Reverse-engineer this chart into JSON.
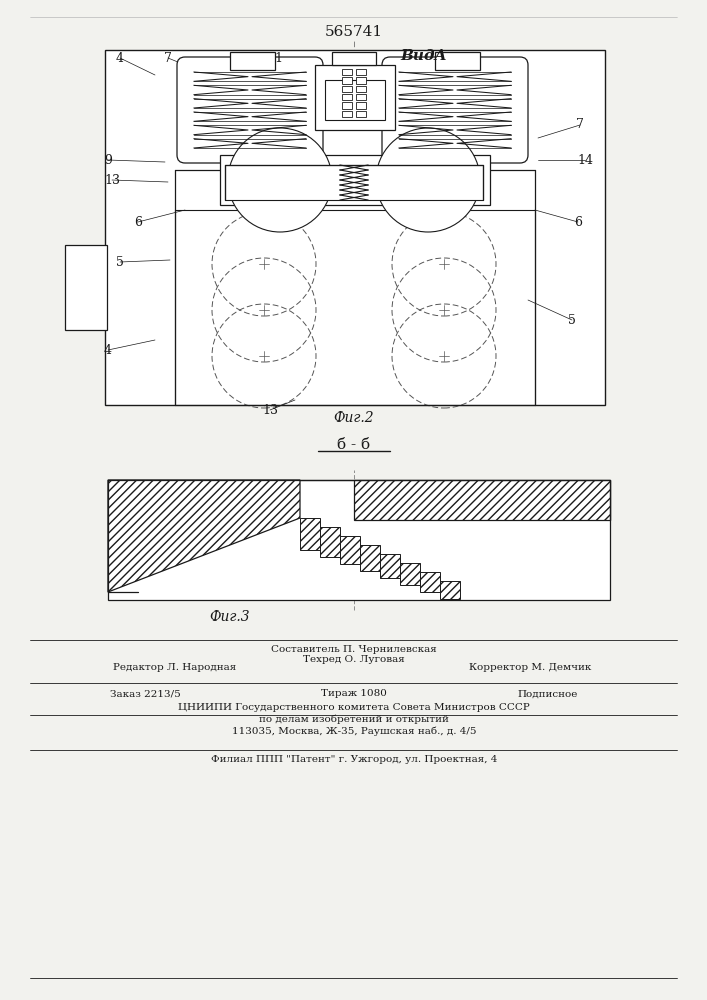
{
  "title": "565741",
  "bg_color": "#f2f2ee",
  "line_color": "#1a1a1a",
  "fig2_label": "Фиг.2",
  "fig3_label": "Фиг.3",
  "view_label": "ВидA",
  "section_label": "б - б",
  "footer_line1": "Составитель П. Чернилевская",
  "footer_line2a": "Редактор Л. Народная",
  "footer_line2b": "Техред О. Луговая",
  "footer_line2c": "Корректор М. Демчик",
  "footer_line3a": "Заказ 2213/5",
  "footer_line3b": "Тираж 1080",
  "footer_line3c": "Подписное",
  "footer_line4": "ЦНИИПИ Государственного комитета Совета Министров СССР",
  "footer_line5": "по делам изобретений и открытий",
  "footer_line6": "113035, Москва, Ж-35, Раушская наб., д. 4/5",
  "footer_line7": "Филиал ППП \"Патент\" г. Ужгород, ул. Проектная, 4"
}
